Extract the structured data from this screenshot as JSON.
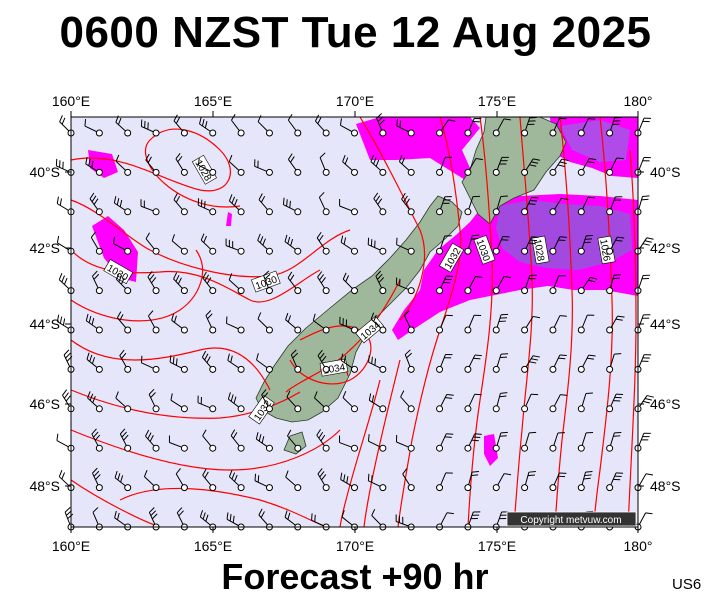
{
  "title": "0600 NZST Tue 12 Aug 2025",
  "footer": "Forecast +90 hr",
  "model_code": "US6",
  "copyright": "Copyright metvuw.com",
  "map": {
    "lon_min": 160,
    "lon_max": 180,
    "lat_min": -49,
    "lat_max": -38.7,
    "lon_labels": [
      "160°E",
      "165°E",
      "170°E",
      "175°E",
      "180°"
    ],
    "lat_labels": [
      "40°S",
      "42°S",
      "44°S",
      "46°S",
      "48°S"
    ],
    "isobar_labels": [
      "1028",
      "1030",
      "1030",
      "1032",
      "1030",
      "1028",
      "1026",
      "1034",
      "1034",
      "1032"
    ]
  },
  "colors": {
    "ocean": "#e6e6fa",
    "land": "#9fb79a",
    "isobar": "#ff0000",
    "rain_magenta": "#ff00ff",
    "rain_heavy": "#8a2be2"
  }
}
